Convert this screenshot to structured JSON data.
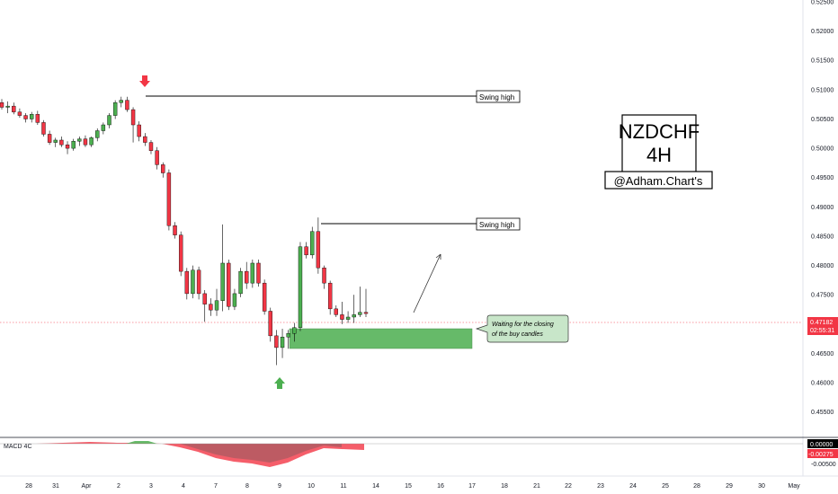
{
  "title": {
    "symbol": "NZDCHF",
    "timeframe": "4H",
    "handle": "@Adham.Chart's"
  },
  "annotations": {
    "swing_high_1": "Swing high",
    "swing_high_2": "Swing high",
    "note_line1": "Waiting for the closing",
    "note_line2": "of the buy candles"
  },
  "price_tag": {
    "price": "0.47182",
    "countdown": "02:55:31",
    "color": "#f23645"
  },
  "macd": {
    "label": "MACD 4C",
    "tags": [
      "0.00000",
      "-0.00275"
    ],
    "axis_ticks": [
      "-0.00500"
    ]
  },
  "colors": {
    "up": "#4caf50",
    "down": "#f23645",
    "zone": "#4caf50",
    "note_bg": "#c8e6c9",
    "arrow_down": "#f23645",
    "arrow_up": "#4caf50"
  },
  "chart_data": {
    "type": "candlestick",
    "y_ticks": [
      "0.52500",
      "0.52000",
      "0.51500",
      "0.51000",
      "0.50500",
      "0.50000",
      "0.49500",
      "0.49000",
      "0.48500",
      "0.48000",
      "0.47500",
      "0.47000",
      "0.46500",
      "0.46000",
      "0.45500"
    ],
    "x_ticks": [
      "28",
      "31",
      "Apr",
      "2",
      "3",
      "4",
      "7",
      "8",
      "9",
      "10",
      "11",
      "14",
      "15",
      "16",
      "17",
      "18",
      "21",
      "22",
      "23",
      "24",
      "25",
      "28",
      "29",
      "30",
      "May"
    ],
    "ylim": [
      0.4525,
      0.525
    ],
    "swing_highs": [
      0.5091,
      0.4882
    ],
    "demand_zone": [
      0.4677,
      0.471
    ],
    "candles": [
      [
        0.5078,
        0.5084,
        0.5066,
        0.507
      ],
      [
        0.507,
        0.508,
        0.506,
        0.5072
      ],
      [
        0.5072,
        0.5078,
        0.5058,
        0.5062
      ],
      [
        0.5062,
        0.5068,
        0.5052,
        0.5056
      ],
      [
        0.5056,
        0.506,
        0.5044,
        0.505
      ],
      [
        0.505,
        0.5062,
        0.5044,
        0.5058
      ],
      [
        0.5058,
        0.5064,
        0.504,
        0.5044
      ],
      [
        0.5044,
        0.5048,
        0.502,
        0.5024
      ],
      [
        0.5024,
        0.503,
        0.5006,
        0.501
      ],
      [
        0.501,
        0.5018,
        0.5002,
        0.5014
      ],
      [
        0.5014,
        0.502,
        0.5002,
        0.5006
      ],
      [
        0.5006,
        0.5012,
        0.499,
        0.5
      ],
      [
        0.5,
        0.5016,
        0.4996,
        0.5012
      ],
      [
        0.5012,
        0.502,
        0.5004,
        0.5016
      ],
      [
        0.5016,
        0.5022,
        0.5002,
        0.5006
      ],
      [
        0.5006,
        0.502,
        0.5002,
        0.5018
      ],
      [
        0.5018,
        0.5034,
        0.5012,
        0.503
      ],
      [
        0.503,
        0.5044,
        0.5024,
        0.504
      ],
      [
        0.504,
        0.506,
        0.5034,
        0.5056
      ],
      [
        0.5056,
        0.5082,
        0.505,
        0.5078
      ],
      [
        0.5078,
        0.5088,
        0.507,
        0.5082
      ],
      [
        0.5082,
        0.5088,
        0.5062,
        0.5066
      ],
      [
        0.5066,
        0.507,
        0.501,
        0.504
      ],
      [
        0.504,
        0.5046,
        0.5012,
        0.502
      ],
      [
        0.502,
        0.5026,
        0.5004,
        0.501
      ],
      [
        0.501,
        0.5014,
        0.499,
        0.4996
      ],
      [
        0.4996,
        0.5002,
        0.4964,
        0.4972
      ],
      [
        0.4972,
        0.4976,
        0.495,
        0.4958
      ],
      [
        0.4958,
        0.4964,
        0.486,
        0.4868
      ],
      [
        0.4868,
        0.4874,
        0.4846,
        0.4852
      ],
      [
        0.4852,
        0.4858,
        0.4782,
        0.479
      ],
      [
        0.479,
        0.4796,
        0.4742,
        0.4752
      ],
      [
        0.4752,
        0.48,
        0.4744,
        0.4792
      ],
      [
        0.4792,
        0.4798,
        0.4742,
        0.4752
      ],
      [
        0.4752,
        0.4758,
        0.4704,
        0.4734
      ],
      [
        0.4734,
        0.4744,
        0.4714,
        0.4724
      ],
      [
        0.4724,
        0.476,
        0.4714,
        0.474
      ],
      [
        0.474,
        0.487,
        0.4722,
        0.4804
      ],
      [
        0.4804,
        0.481,
        0.4724,
        0.473
      ],
      [
        0.473,
        0.476,
        0.4724,
        0.4752
      ],
      [
        0.4752,
        0.4796,
        0.4746,
        0.479
      ],
      [
        0.479,
        0.4806,
        0.476,
        0.477
      ],
      [
        0.477,
        0.481,
        0.4762,
        0.4804
      ],
      [
        0.4804,
        0.481,
        0.4764,
        0.477
      ],
      [
        0.477,
        0.4776,
        0.4716,
        0.4722
      ],
      [
        0.4722,
        0.4728,
        0.467,
        0.468
      ],
      [
        0.468,
        0.469,
        0.463,
        0.466
      ],
      [
        0.466,
        0.4692,
        0.4642,
        0.4678
      ],
      [
        0.4678,
        0.469,
        0.4658,
        0.4684
      ],
      [
        0.4684,
        0.4702,
        0.467,
        0.4694
      ],
      [
        0.4694,
        0.484,
        0.4688,
        0.4832
      ],
      [
        0.4832,
        0.484,
        0.4812,
        0.4818
      ],
      [
        0.4818,
        0.4866,
        0.4812,
        0.4858
      ],
      [
        0.4858,
        0.4882,
        0.4786,
        0.4796
      ],
      [
        0.4796,
        0.48,
        0.476,
        0.477
      ],
      [
        0.477,
        0.4774,
        0.4716,
        0.4726
      ],
      [
        0.4726,
        0.4732,
        0.4712,
        0.4716
      ],
      [
        0.4716,
        0.4738,
        0.47,
        0.4708
      ],
      [
        0.4708,
        0.4722,
        0.4702,
        0.4712
      ],
      [
        0.4712,
        0.475,
        0.4702,
        0.4716
      ],
      [
        0.4716,
        0.4764,
        0.4712,
        0.472
      ],
      [
        0.472,
        0.476,
        0.4712,
        0.4718
      ]
    ]
  }
}
